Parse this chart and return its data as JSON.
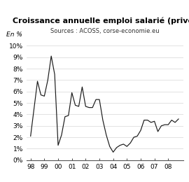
{
  "title": "Croissance annuelle emploi salarié (privé)",
  "subtitle": "Sources : ACOSS, corse-economie.eu",
  "ylabel_text": "En %",
  "xlim": [
    1997.7,
    2009.1
  ],
  "ylim": [
    0,
    10.5
  ],
  "yticks": [
    0,
    1,
    2,
    3,
    4,
    5,
    6,
    7,
    8,
    9,
    10
  ],
  "xtick_labels": [
    "98",
    "99",
    "00",
    "01",
    "02",
    "03",
    "04",
    "05",
    "06",
    "07",
    "08"
  ],
  "xtick_positions": [
    1998,
    1999,
    2000,
    2001,
    2002,
    2003,
    2004,
    2005,
    2006,
    2007,
    2008
  ],
  "line_color": "#1a1a1a",
  "background_color": "#ffffff",
  "grid_color": "#dddddd",
  "x": [
    1998.0,
    1998.25,
    1998.5,
    1998.75,
    1999.0,
    1999.25,
    1999.5,
    1999.75,
    2000.0,
    2000.25,
    2000.5,
    2000.75,
    2001.0,
    2001.25,
    2001.5,
    2001.75,
    2002.0,
    2002.25,
    2002.5,
    2002.75,
    2003.0,
    2003.25,
    2003.5,
    2003.75,
    2004.0,
    2004.25,
    2004.5,
    2004.75,
    2005.0,
    2005.25,
    2005.5,
    2005.75,
    2006.0,
    2006.25,
    2006.5,
    2006.75,
    2007.0,
    2007.25,
    2007.5,
    2007.75,
    2008.0,
    2008.25,
    2008.5,
    2008.75
  ],
  "y": [
    2.1,
    4.5,
    6.9,
    5.7,
    5.6,
    7.0,
    9.1,
    7.5,
    1.3,
    2.2,
    3.8,
    3.9,
    5.9,
    4.8,
    4.7,
    6.4,
    4.7,
    4.6,
    4.6,
    5.3,
    5.3,
    3.5,
    2.2,
    1.2,
    0.7,
    1.1,
    1.3,
    1.4,
    1.2,
    1.5,
    2.0,
    2.1,
    2.6,
    3.5,
    3.5,
    3.3,
    3.4,
    2.5,
    3.0,
    3.1,
    3.1,
    3.5,
    3.3,
    3.6
  ]
}
